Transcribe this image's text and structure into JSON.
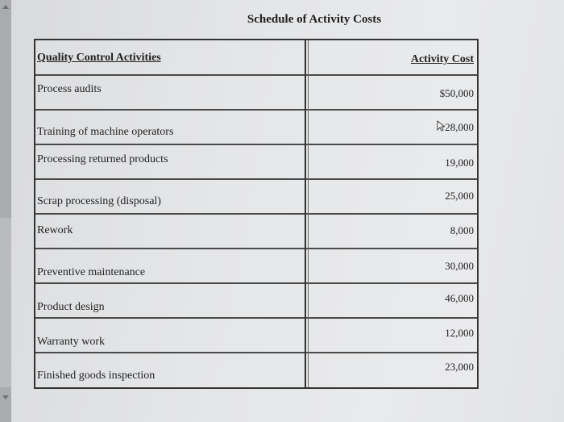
{
  "title": "Schedule of Activity Costs",
  "table": {
    "header": {
      "activity": "Quality Control Activities",
      "cost": "Activity Cost"
    },
    "rows": [
      {
        "activity": "Process audits",
        "cost": "$50,000"
      },
      {
        "activity": "Training of machine operators",
        "cost": "28,000"
      },
      {
        "activity": "Processing returned products",
        "cost": "19,000"
      },
      {
        "activity": "Scrap processing (disposal)",
        "cost": "25,000"
      },
      {
        "activity": "Rework",
        "cost": "8,000"
      },
      {
        "activity": "Preventive maintenance",
        "cost": "30,000"
      },
      {
        "activity": "Product design",
        "cost": "46,000"
      },
      {
        "activity": "Warranty work",
        "cost": "12,000"
      },
      {
        "activity": "Finished goods inspection",
        "cost": "23,000"
      }
    ]
  },
  "icons": {
    "scroll_up": "arrow-up-icon",
    "scroll_down": "arrow-down-icon",
    "pointer": "mouse-pointer-icon"
  }
}
